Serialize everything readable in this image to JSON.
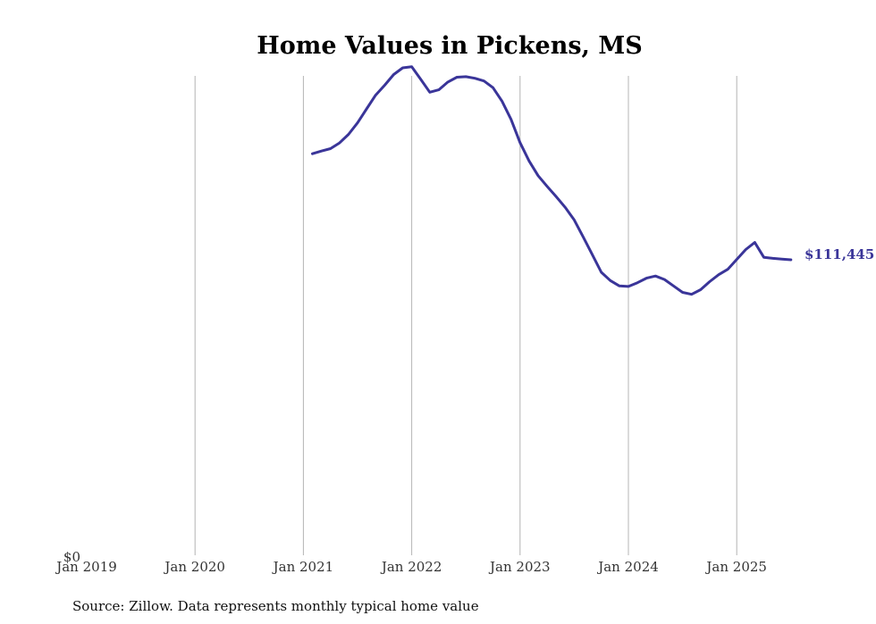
{
  "chart_data": {
    "type": "line",
    "title": "Home Values in Pickens, MS",
    "source": "Source: Zillow. Data represents monthly typical home value",
    "x_ticks": [
      "Jan 2019",
      "Jan 2020",
      "Jan 2021",
      "Jan 2022",
      "Jan 2023",
      "Jan 2024",
      "Jan 2025"
    ],
    "y_tick_label": "$0",
    "y_zero_value": 0,
    "ylim": [
      0,
      180000
    ],
    "grid": "vertical",
    "line_color": "#3a3599",
    "end_label": "$111,445",
    "series": [
      {
        "x": [
          "2021-02",
          "2021-03",
          "2021-04",
          "2021-05",
          "2021-06",
          "2021-07",
          "2021-08",
          "2021-09",
          "2021-10",
          "2021-11",
          "2021-12",
          "2022-01",
          "2022-02",
          "2022-03",
          "2022-04",
          "2022-05",
          "2022-06",
          "2022-07",
          "2022-08",
          "2022-09",
          "2022-10",
          "2022-11",
          "2022-12",
          "2023-01",
          "2023-02",
          "2023-03",
          "2023-04",
          "2023-05",
          "2023-06",
          "2023-07",
          "2023-08",
          "2023-09",
          "2023-10",
          "2023-11",
          "2023-12",
          "2024-01",
          "2024-02",
          "2024-03",
          "2024-04",
          "2024-05",
          "2024-06",
          "2024-07",
          "2024-08",
          "2024-09",
          "2024-10",
          "2024-11",
          "2024-12",
          "2025-01",
          "2025-02",
          "2025-03",
          "2025-04",
          "2025-05",
          "2025-06",
          "2025-07"
        ],
        "y": [
          151000,
          152000,
          152900,
          155000,
          158200,
          162500,
          167700,
          172800,
          176500,
          180500,
          183000,
          183400,
          178700,
          173900,
          174800,
          177700,
          179500,
          179700,
          179100,
          178100,
          175600,
          170600,
          163800,
          155100,
          148300,
          142800,
          138800,
          135000,
          131000,
          126300,
          119900,
          113400,
          106800,
          103700,
          101700,
          101500,
          102900,
          104600,
          105400,
          104100,
          101700,
          99300,
          98600,
          100300,
          103300,
          105900,
          107900,
          111600,
          115300,
          117900,
          112400,
          112000,
          111700,
          111445
        ]
      }
    ]
  }
}
